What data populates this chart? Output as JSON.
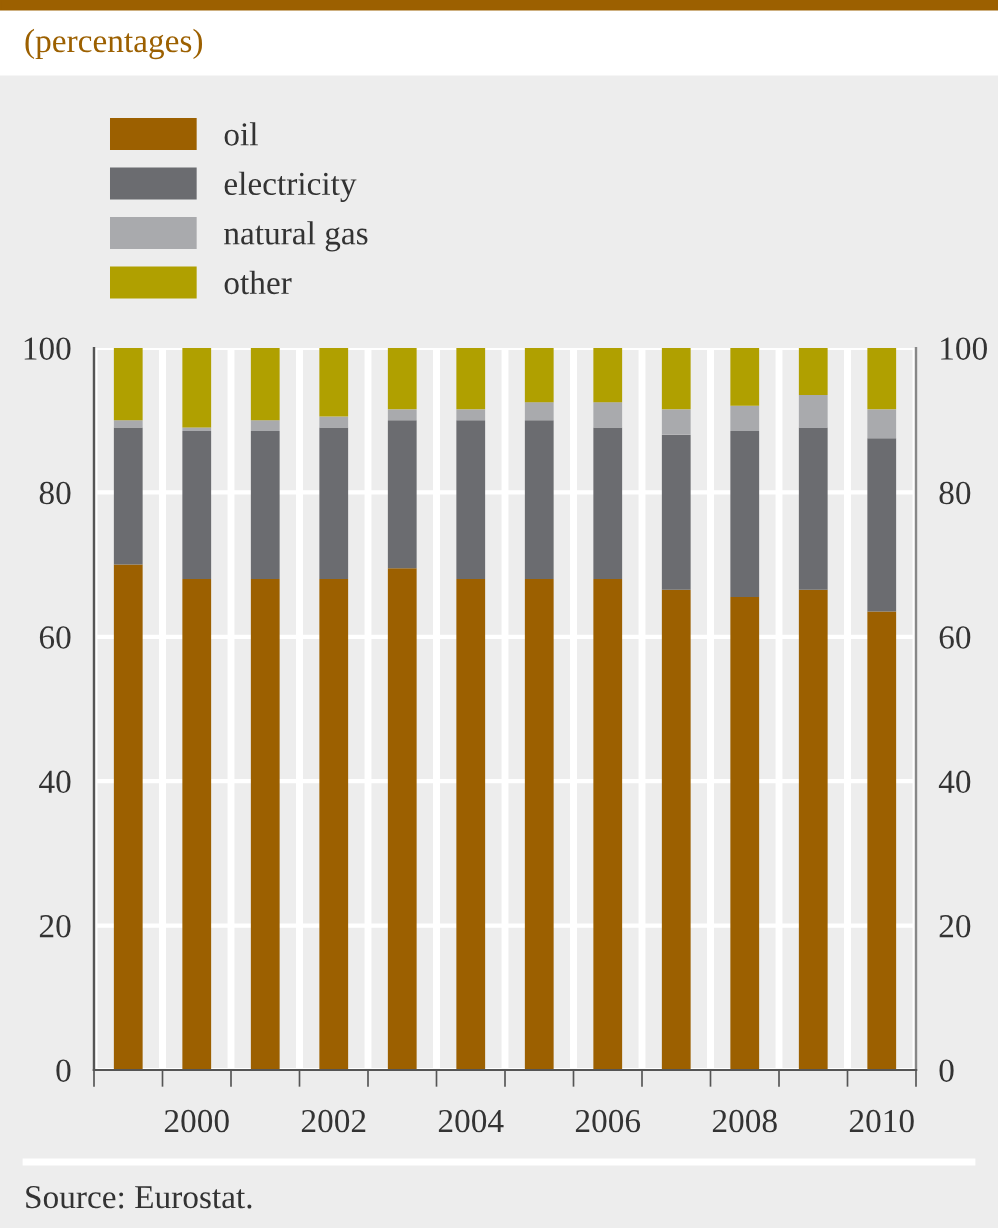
{
  "chart_data": {
    "type": "bar",
    "stacked": true,
    "title": "(percentages)",
    "categories": [
      null,
      "2000",
      null,
      "2002",
      null,
      "2004",
      null,
      "2006",
      null,
      "2008",
      null,
      "2010"
    ],
    "series": [
      {
        "name": "oil",
        "color": "#9c6000",
        "values": [
          70,
          68,
          68,
          68,
          69.5,
          68,
          68,
          68,
          66.5,
          65.5,
          66.5,
          63.5
        ]
      },
      {
        "name": "electricity",
        "color": "#6b6c70",
        "values": [
          19,
          20.5,
          20.5,
          21,
          20.5,
          22,
          22,
          21,
          21.5,
          23,
          22.5,
          24
        ]
      },
      {
        "name": "natural gas",
        "color": "#a9aaad",
        "values": [
          1,
          0.5,
          1.5,
          1.5,
          1.5,
          1.5,
          2.5,
          3.5,
          3.5,
          3.5,
          4.5,
          4
        ]
      },
      {
        "name": "other",
        "color": "#b0a000",
        "values": [
          10,
          11,
          10,
          9.5,
          8.5,
          8.5,
          7.5,
          7.5,
          8.5,
          8,
          6.5,
          8.5
        ]
      }
    ],
    "ylim": [
      0,
      100
    ],
    "yticks": [
      0,
      20,
      40,
      60,
      80,
      100
    ],
    "y2lim": [
      0,
      100
    ],
    "y2ticks": [
      0,
      20,
      40,
      60,
      80,
      100
    ],
    "grid": true,
    "legend": "top left",
    "annotations": [
      "Source: Eurostat."
    ]
  }
}
